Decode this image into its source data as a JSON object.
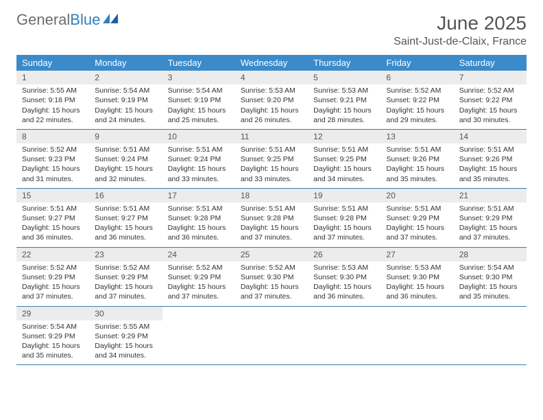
{
  "logo": {
    "text1": "General",
    "text2": "Blue"
  },
  "title": "June 2025",
  "location": "Saint-Just-de-Claix, France",
  "colors": {
    "header_bg": "#3b8bcb",
    "header_text": "#ffffff",
    "daynum_bg": "#ececec",
    "border": "#3b7ca8",
    "logo_gray": "#6d6d6d",
    "logo_blue": "#2f7fbf"
  },
  "weekdays": [
    "Sunday",
    "Monday",
    "Tuesday",
    "Wednesday",
    "Thursday",
    "Friday",
    "Saturday"
  ],
  "weeks": [
    [
      {
        "n": "1",
        "sunrise": "Sunrise: 5:55 AM",
        "sunset": "Sunset: 9:18 PM",
        "daylight": "Daylight: 15 hours and 22 minutes."
      },
      {
        "n": "2",
        "sunrise": "Sunrise: 5:54 AM",
        "sunset": "Sunset: 9:19 PM",
        "daylight": "Daylight: 15 hours and 24 minutes."
      },
      {
        "n": "3",
        "sunrise": "Sunrise: 5:54 AM",
        "sunset": "Sunset: 9:19 PM",
        "daylight": "Daylight: 15 hours and 25 minutes."
      },
      {
        "n": "4",
        "sunrise": "Sunrise: 5:53 AM",
        "sunset": "Sunset: 9:20 PM",
        "daylight": "Daylight: 15 hours and 26 minutes."
      },
      {
        "n": "5",
        "sunrise": "Sunrise: 5:53 AM",
        "sunset": "Sunset: 9:21 PM",
        "daylight": "Daylight: 15 hours and 28 minutes."
      },
      {
        "n": "6",
        "sunrise": "Sunrise: 5:52 AM",
        "sunset": "Sunset: 9:22 PM",
        "daylight": "Daylight: 15 hours and 29 minutes."
      },
      {
        "n": "7",
        "sunrise": "Sunrise: 5:52 AM",
        "sunset": "Sunset: 9:22 PM",
        "daylight": "Daylight: 15 hours and 30 minutes."
      }
    ],
    [
      {
        "n": "8",
        "sunrise": "Sunrise: 5:52 AM",
        "sunset": "Sunset: 9:23 PM",
        "daylight": "Daylight: 15 hours and 31 minutes."
      },
      {
        "n": "9",
        "sunrise": "Sunrise: 5:51 AM",
        "sunset": "Sunset: 9:24 PM",
        "daylight": "Daylight: 15 hours and 32 minutes."
      },
      {
        "n": "10",
        "sunrise": "Sunrise: 5:51 AM",
        "sunset": "Sunset: 9:24 PM",
        "daylight": "Daylight: 15 hours and 33 minutes."
      },
      {
        "n": "11",
        "sunrise": "Sunrise: 5:51 AM",
        "sunset": "Sunset: 9:25 PM",
        "daylight": "Daylight: 15 hours and 33 minutes."
      },
      {
        "n": "12",
        "sunrise": "Sunrise: 5:51 AM",
        "sunset": "Sunset: 9:25 PM",
        "daylight": "Daylight: 15 hours and 34 minutes."
      },
      {
        "n": "13",
        "sunrise": "Sunrise: 5:51 AM",
        "sunset": "Sunset: 9:26 PM",
        "daylight": "Daylight: 15 hours and 35 minutes."
      },
      {
        "n": "14",
        "sunrise": "Sunrise: 5:51 AM",
        "sunset": "Sunset: 9:26 PM",
        "daylight": "Daylight: 15 hours and 35 minutes."
      }
    ],
    [
      {
        "n": "15",
        "sunrise": "Sunrise: 5:51 AM",
        "sunset": "Sunset: 9:27 PM",
        "daylight": "Daylight: 15 hours and 36 minutes."
      },
      {
        "n": "16",
        "sunrise": "Sunrise: 5:51 AM",
        "sunset": "Sunset: 9:27 PM",
        "daylight": "Daylight: 15 hours and 36 minutes."
      },
      {
        "n": "17",
        "sunrise": "Sunrise: 5:51 AM",
        "sunset": "Sunset: 9:28 PM",
        "daylight": "Daylight: 15 hours and 36 minutes."
      },
      {
        "n": "18",
        "sunrise": "Sunrise: 5:51 AM",
        "sunset": "Sunset: 9:28 PM",
        "daylight": "Daylight: 15 hours and 37 minutes."
      },
      {
        "n": "19",
        "sunrise": "Sunrise: 5:51 AM",
        "sunset": "Sunset: 9:28 PM",
        "daylight": "Daylight: 15 hours and 37 minutes."
      },
      {
        "n": "20",
        "sunrise": "Sunrise: 5:51 AM",
        "sunset": "Sunset: 9:29 PM",
        "daylight": "Daylight: 15 hours and 37 minutes."
      },
      {
        "n": "21",
        "sunrise": "Sunrise: 5:51 AM",
        "sunset": "Sunset: 9:29 PM",
        "daylight": "Daylight: 15 hours and 37 minutes."
      }
    ],
    [
      {
        "n": "22",
        "sunrise": "Sunrise: 5:52 AM",
        "sunset": "Sunset: 9:29 PM",
        "daylight": "Daylight: 15 hours and 37 minutes."
      },
      {
        "n": "23",
        "sunrise": "Sunrise: 5:52 AM",
        "sunset": "Sunset: 9:29 PM",
        "daylight": "Daylight: 15 hours and 37 minutes."
      },
      {
        "n": "24",
        "sunrise": "Sunrise: 5:52 AM",
        "sunset": "Sunset: 9:29 PM",
        "daylight": "Daylight: 15 hours and 37 minutes."
      },
      {
        "n": "25",
        "sunrise": "Sunrise: 5:52 AM",
        "sunset": "Sunset: 9:30 PM",
        "daylight": "Daylight: 15 hours and 37 minutes."
      },
      {
        "n": "26",
        "sunrise": "Sunrise: 5:53 AM",
        "sunset": "Sunset: 9:30 PM",
        "daylight": "Daylight: 15 hours and 36 minutes."
      },
      {
        "n": "27",
        "sunrise": "Sunrise: 5:53 AM",
        "sunset": "Sunset: 9:30 PM",
        "daylight": "Daylight: 15 hours and 36 minutes."
      },
      {
        "n": "28",
        "sunrise": "Sunrise: 5:54 AM",
        "sunset": "Sunset: 9:30 PM",
        "daylight": "Daylight: 15 hours and 35 minutes."
      }
    ],
    [
      {
        "n": "29",
        "sunrise": "Sunrise: 5:54 AM",
        "sunset": "Sunset: 9:29 PM",
        "daylight": "Daylight: 15 hours and 35 minutes."
      },
      {
        "n": "30",
        "sunrise": "Sunrise: 5:55 AM",
        "sunset": "Sunset: 9:29 PM",
        "daylight": "Daylight: 15 hours and 34 minutes."
      },
      {
        "empty": true
      },
      {
        "empty": true
      },
      {
        "empty": true
      },
      {
        "empty": true
      },
      {
        "empty": true
      }
    ]
  ]
}
